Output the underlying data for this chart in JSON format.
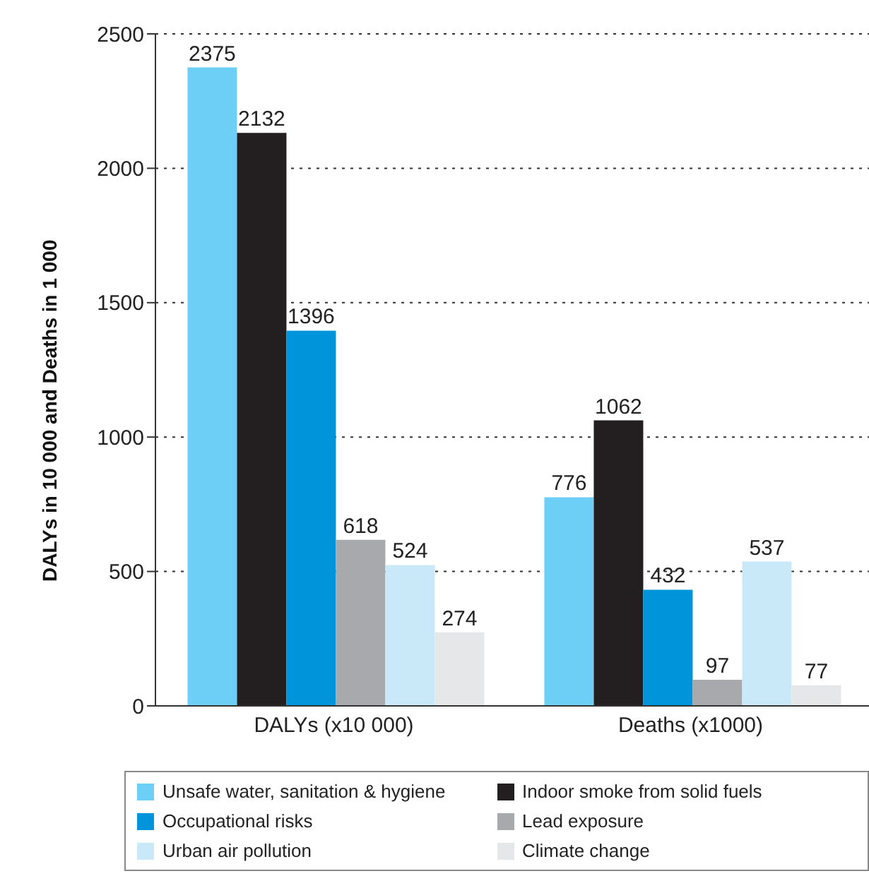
{
  "chart_data": {
    "type": "bar",
    "ylabel": "DALYs in 10 000 and Deaths in 1 000",
    "categories": [
      "DALYs (x10 000)",
      "Deaths (x1000)"
    ],
    "series": [
      {
        "name": "Unsafe water, sanitation & hygiene",
        "color": "#6dcff6",
        "values": [
          2375,
          776
        ]
      },
      {
        "name": "Indoor smoke from solid fuels",
        "color": "#231f20",
        "values": [
          2132,
          1062
        ]
      },
      {
        "name": "Occupational risks",
        "color": "#0095da",
        "values": [
          1396,
          432
        ]
      },
      {
        "name": "Lead exposure",
        "color": "#a7a9ac",
        "values": [
          618,
          97
        ]
      },
      {
        "name": "Urban air pollution",
        "color": "#c9e9f8",
        "values": [
          524,
          537
        ]
      },
      {
        "name": "Climate change",
        "color": "#e6e7e8",
        "values": [
          274,
          77
        ]
      }
    ],
    "ylim": [
      0,
      2500
    ],
    "yticks": [
      0,
      500,
      1000,
      1500,
      2000,
      2500
    ],
    "grid": "y",
    "data_labels": true,
    "legend": "bottom"
  }
}
